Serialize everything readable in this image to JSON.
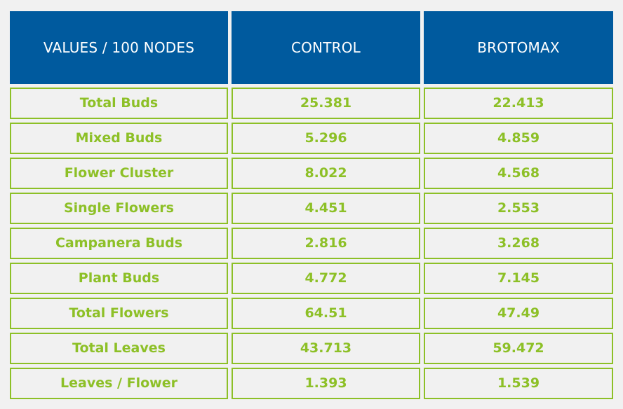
{
  "table": {
    "headers": [
      "VALUES / 100 NODES",
      "CONTROL",
      "BROTOMAX"
    ],
    "rows": [
      [
        "Total Buds",
        "25.381",
        "22.413"
      ],
      [
        "Mixed Buds",
        "5.296",
        "4.859"
      ],
      [
        "Flower Cluster",
        "8.022",
        "4.568"
      ],
      [
        "Single Flowers",
        "4.451",
        "2.553"
      ],
      [
        "Campanera Buds",
        "2.816",
        "3.268"
      ],
      [
        "Plant Buds",
        "4.772",
        "7.145"
      ],
      [
        "Total Flowers",
        "64.51",
        "47.49"
      ],
      [
        "Total Leaves",
        "43.713",
        "59.472"
      ],
      [
        "Leaves / Flower",
        "1.393",
        "1.539"
      ]
    ]
  },
  "colors": {
    "header_bg": "#005a9e",
    "header_text": "#ffffff",
    "accent_green": "#8dc027",
    "background": "#f1f1f1"
  }
}
